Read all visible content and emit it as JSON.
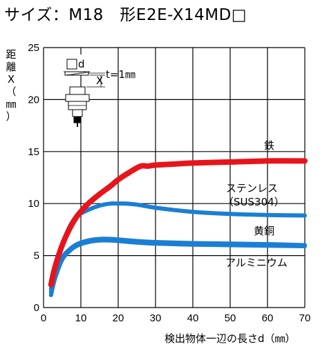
{
  "page": {
    "title": "サイズ：M18　形E2E-X14MD□"
  },
  "colors": {
    "iron": "#e8141b",
    "steel": "#1a7fd4",
    "brass": "#1a7fd4",
    "aluminum": "#1a7fd4",
    "grid": "#000000"
  },
  "inset": {
    "d_label": "□d",
    "x_label": "X",
    "t_label": "t=1㎜"
  },
  "chart_data": {
    "type": "line",
    "title": "",
    "xlabel": "検出物体一辺の長さd（㎜）",
    "ylabel": [
      "距",
      "離",
      "X",
      "（",
      "㎜",
      "）"
    ],
    "xlim": [
      0,
      70
    ],
    "ylim": [
      0,
      25
    ],
    "xticks": [
      0,
      10,
      20,
      30,
      40,
      50,
      60,
      70
    ],
    "yticks": [
      0,
      5,
      10,
      15,
      20,
      25
    ],
    "grid": true,
    "series": [
      {
        "name": "鉄",
        "color": "#e8141b",
        "x": [
          2,
          3,
          5,
          7,
          9,
          12,
          15,
          18,
          20,
          23,
          26,
          28,
          30,
          35,
          40,
          50,
          60,
          70
        ],
        "y": [
          2.2,
          3.8,
          6.0,
          7.6,
          8.8,
          10.0,
          10.9,
          11.7,
          12.3,
          13.0,
          13.6,
          13.6,
          13.7,
          13.8,
          13.9,
          14.0,
          14.1,
          14.1
        ]
      },
      {
        "name": "ステンレス\n（SUS304）",
        "color": "#1a7fd4",
        "x": [
          2,
          3,
          5,
          7,
          9,
          12,
          15,
          18,
          20,
          22,
          25,
          30,
          40,
          50,
          60,
          70
        ],
        "y": [
          1.8,
          3.5,
          6.0,
          7.8,
          8.8,
          9.4,
          9.8,
          10.0,
          10.0,
          10.0,
          9.9,
          9.6,
          9.2,
          9.0,
          8.9,
          8.85
        ]
      },
      {
        "name": "黄銅",
        "color": "#1a7fd4",
        "x": [
          2,
          3,
          5,
          7,
          9,
          12,
          15,
          18,
          20,
          25,
          30,
          40,
          50,
          60,
          70
        ],
        "y": [
          1.5,
          3.0,
          4.8,
          5.6,
          6.1,
          6.45,
          6.6,
          6.6,
          6.55,
          6.4,
          6.3,
          6.2,
          6.15,
          6.1,
          6.0
        ]
      },
      {
        "name": "アルミニウム",
        "color": "#1a7fd4",
        "x": [
          2,
          3,
          5,
          7,
          9,
          12,
          15,
          18,
          20,
          25,
          30,
          40,
          50,
          60,
          70
        ],
        "y": [
          1.2,
          2.7,
          4.6,
          5.45,
          5.95,
          6.3,
          6.45,
          6.45,
          6.4,
          6.25,
          6.15,
          6.05,
          6.0,
          5.95,
          5.9
        ]
      }
    ],
    "annotations": [
      "鉄",
      "ステンレス",
      "（SUS304）",
      "黄銅",
      "アルミニウム"
    ]
  }
}
